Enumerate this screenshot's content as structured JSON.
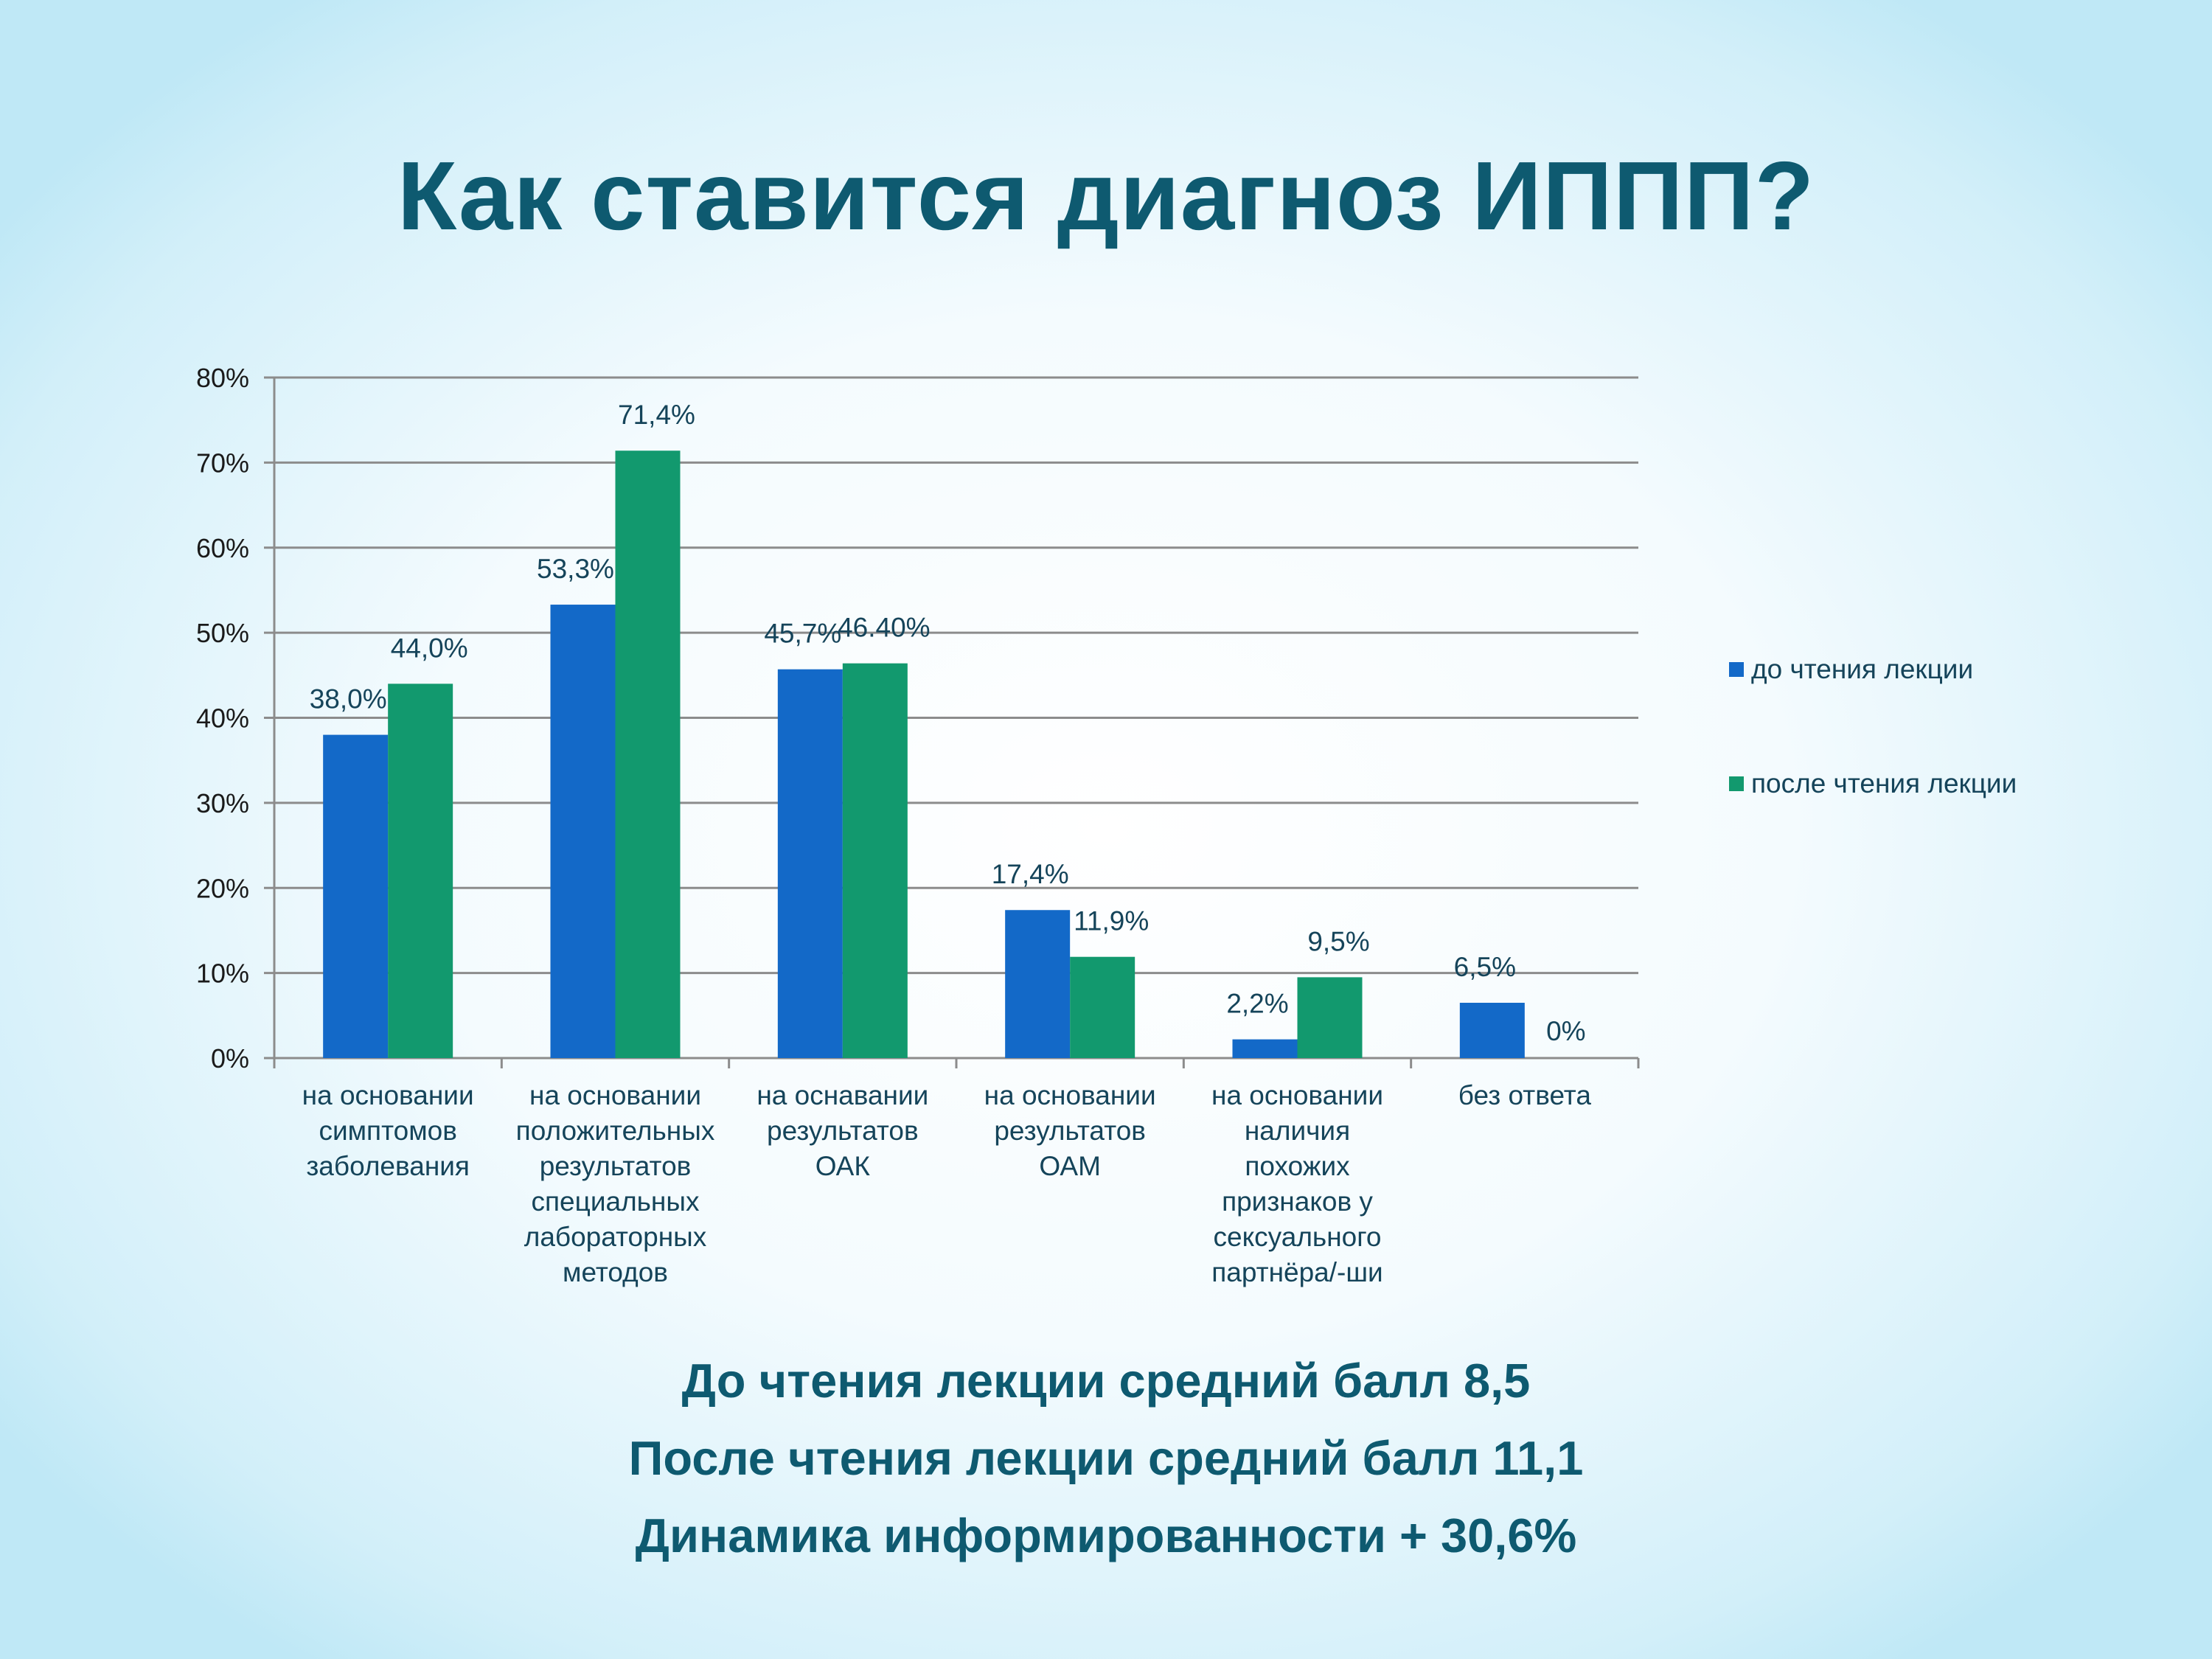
{
  "title": "Как ставится диагноз ИППП?",
  "summary": [
    "До чтения лекции средний балл 8,5",
    "После чтения лекции средний балл 11,1",
    "Динамика информированности + 30,6%"
  ],
  "colors": {
    "before": "#1369c8",
    "after": "#12996e",
    "title": "#0e5a70",
    "grid": "#8c8c8c"
  },
  "chart_data": {
    "type": "bar",
    "title": "",
    "xlabel": "",
    "ylabel": "",
    "ylim": [
      0,
      80
    ],
    "y_ticks": [
      "0%",
      "10%",
      "20%",
      "30%",
      "40%",
      "50%",
      "60%",
      "70%",
      "80%"
    ],
    "grid": true,
    "legend_position": "right",
    "categories": [
      [
        "на основании",
        "симптомов",
        "заболевания"
      ],
      [
        "на основании",
        "положительных",
        "результатов",
        "специальных",
        "лабораторных",
        "методов"
      ],
      [
        "на оснавании",
        "результатов",
        "ОАК"
      ],
      [
        "на основании",
        "результатов",
        "ОАМ"
      ],
      [
        "на основании",
        "наличия",
        "похожих",
        "признаков у",
        "сексуального",
        "партнёра/-ши"
      ],
      [
        "без ответа"
      ]
    ],
    "series": [
      {
        "name": "до чтения лекции",
        "color": "#1369c8",
        "values": [
          38.0,
          53.3,
          45.7,
          17.4,
          2.2,
          6.5
        ],
        "labels": [
          "38,0%",
          "53,3%",
          "45,7%",
          "17,4%",
          "2,2%",
          "6,5%"
        ]
      },
      {
        "name": "после чтения лекции",
        "color": "#12996e",
        "values": [
          44.0,
          71.4,
          46.4,
          11.9,
          9.5,
          0
        ],
        "labels": [
          "44,0%",
          "71,4%",
          "46.40%",
          "11,9%",
          "9,5%",
          "0%"
        ]
      }
    ]
  }
}
